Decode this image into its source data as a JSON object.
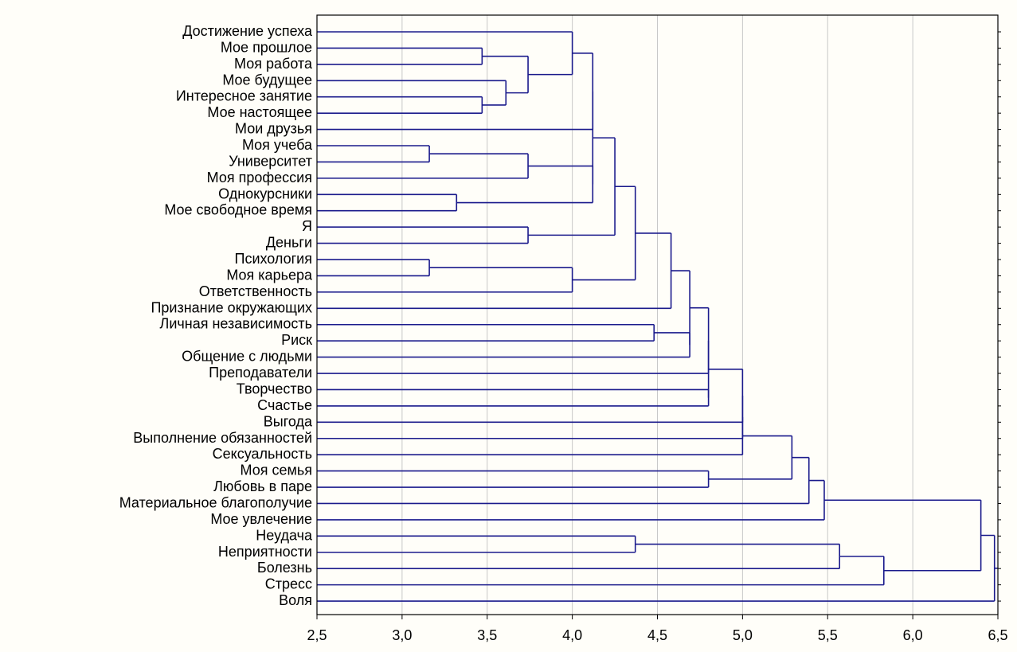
{
  "chart_data": {
    "type": "dendrogram",
    "orientation": "horizontal",
    "title": "",
    "xlabel": "",
    "ylabel": "",
    "xlim": [
      2.5,
      6.5
    ],
    "x_ticks": [
      "2,5",
      "3,0",
      "3,5",
      "4,0",
      "4,5",
      "5,0",
      "5,5",
      "6,0",
      "6,5"
    ],
    "x_tick_values": [
      2.5,
      3.0,
      3.5,
      4.0,
      4.5,
      5.0,
      5.5,
      6.0,
      6.5
    ],
    "grid": true,
    "colors": {
      "lines": "#1a1a8c",
      "grid": "#c8c8c8"
    },
    "leaves": [
      "Достижение успеха",
      "Мое прошлое",
      "Моя работа",
      "Мое будущее",
      "Интересное занятие",
      "Мое настоящее",
      "Мои друзья",
      "Моя учеба",
      "Университет",
      "Моя профессия",
      "Однокурсники",
      "Мое свободное время",
      "Я",
      "Деньги",
      "Психология",
      "Моя карьера",
      "Ответственность",
      "Признание окружающих",
      "Личная независимость",
      "Риск",
      "Общение с людьми",
      "Преподаватели",
      "Творчество",
      "Счастье",
      "Выгода",
      "Выполнение обязанностей",
      "Сексуальность",
      "Моя семья",
      "Любовь в паре",
      "Материальное благополучие",
      "Мое увлечение",
      "Неудача",
      "Неприятности",
      "Болезнь",
      "Стресс",
      "Воля"
    ],
    "merges": [
      {
        "id": "c1",
        "a": "Моя учеба",
        "b": "Университет",
        "height": 3.16
      },
      {
        "id": "c2",
        "a": "Психология",
        "b": "Моя карьера",
        "height": 3.16
      },
      {
        "id": "c3",
        "a": "Однокурсники",
        "b": "Мое свободное время",
        "height": 3.32
      },
      {
        "id": "c4",
        "a": "Мое прошлое",
        "b": "Моя работа",
        "height": 3.47
      },
      {
        "id": "c5",
        "a": "Интересное занятие",
        "b": "Мое настоящее",
        "height": 3.47
      },
      {
        "id": "c6",
        "a": "Мое будущее",
        "b": "c5",
        "height": 3.61
      },
      {
        "id": "c7",
        "a": "c4",
        "b": "c6",
        "height": 3.74
      },
      {
        "id": "c8",
        "a": "c1",
        "b": "Моя профессия",
        "height": 3.74
      },
      {
        "id": "c9",
        "a": "Я",
        "b": "Деньги",
        "height": 3.74
      },
      {
        "id": "c10",
        "a": "Достижение успеха",
        "b": "c7",
        "height": 4.0
      },
      {
        "id": "c11",
        "a": "c2",
        "b": "Ответственность",
        "height": 4.0
      },
      {
        "id": "c12",
        "a": "Неудача",
        "b": "Неприятности",
        "height": 4.37
      },
      {
        "id": "c13",
        "a": "c8",
        "b": "c3",
        "height": 4.12
      },
      {
        "id": "c14",
        "a": "c10",
        "b": "Мои друзья",
        "height": 4.12
      },
      {
        "id": "c15",
        "a": "c14",
        "b": "c13",
        "height": 4.12
      },
      {
        "id": "c16",
        "a": "c15",
        "b": "c9",
        "height": 4.25
      },
      {
        "id": "c17",
        "a": "c16",
        "b": "c11",
        "height": 4.37
      },
      {
        "id": "c18",
        "a": "Личная независимость",
        "b": "Риск",
        "height": 4.48
      },
      {
        "id": "c19",
        "a": "c17",
        "b": "Признание окружающих",
        "height": 4.58
      },
      {
        "id": "c20",
        "a": "c18",
        "b": "Общение с людьми",
        "height": 4.69
      },
      {
        "id": "c21",
        "a": "c19",
        "b": "c20",
        "height": 4.69
      },
      {
        "id": "c22",
        "a": "Творчество",
        "b": "Счастье",
        "height": 4.8
      },
      {
        "id": "c23",
        "a": "Моя семья",
        "b": "Любовь в паре",
        "height": 4.8
      },
      {
        "id": "c24",
        "a": "c21",
        "b": "Преподаватели",
        "height": 4.8
      },
      {
        "id": "c25",
        "a": "c24",
        "b": "c22",
        "height": 4.8
      },
      {
        "id": "c26",
        "a": "c25",
        "b": "Выгода",
        "height": 5.0
      },
      {
        "id": "c27",
        "a": "c26",
        "b": "Выполнение обязанностей",
        "height": 5.0
      },
      {
        "id": "c28",
        "a": "c27",
        "b": "Сексуальность",
        "height": 5.0
      },
      {
        "id": "c29",
        "a": "c28",
        "b": "c23",
        "height": 5.29
      },
      {
        "id": "c30",
        "a": "c29",
        "b": "Материальное благополучие",
        "height": 5.39
      },
      {
        "id": "c31",
        "a": "c30",
        "b": "Мое увлечение",
        "height": 5.48
      },
      {
        "id": "c32",
        "a": "c12",
        "b": "Болезнь",
        "height": 5.57
      },
      {
        "id": "c33",
        "a": "c32",
        "b": "Стресс",
        "height": 5.83
      },
      {
        "id": "c34",
        "a": "c31",
        "b": "c33",
        "height": 6.4
      },
      {
        "id": "c35",
        "a": "c34",
        "b": "Воля",
        "height": 6.48
      }
    ]
  }
}
